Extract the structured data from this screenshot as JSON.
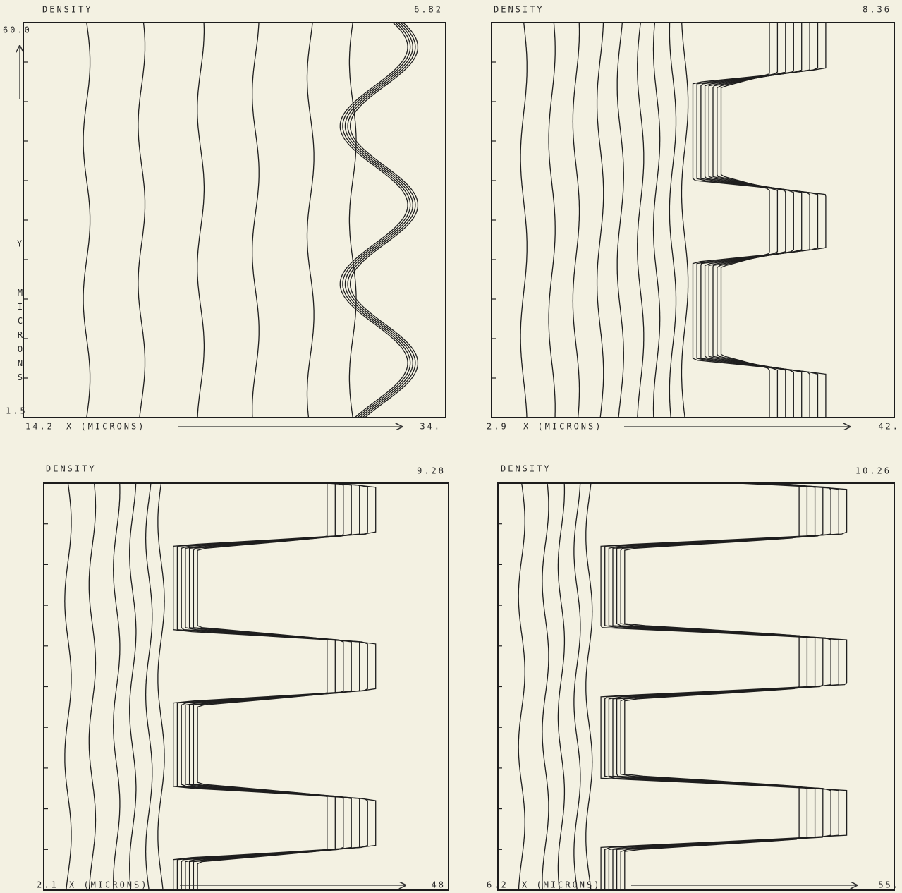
{
  "panels": [
    {
      "title": "DENSITY",
      "time": "6.82",
      "y_top": "60.0",
      "y_bottom": "1.5",
      "y_axis": "Y",
      "y_units": "MICRONS",
      "x_start": "14.2",
      "x_axis": "X (MICRONS)",
      "x_end": "34."
    },
    {
      "title": "DENSITY",
      "time": "8.36",
      "x_start": "2.9",
      "x_axis": "X (MICRONS)",
      "x_end": "42."
    },
    {
      "title": "DENSITY",
      "time": "9.28",
      "x_start": "2.1",
      "x_axis": "X (MICRONS)",
      "x_end": "48"
    },
    {
      "title": "DENSITY",
      "time": "10.26",
      "x_start": "6.2",
      "x_axis": "X (MICRONS)",
      "x_end": "55."
    }
  ]
}
